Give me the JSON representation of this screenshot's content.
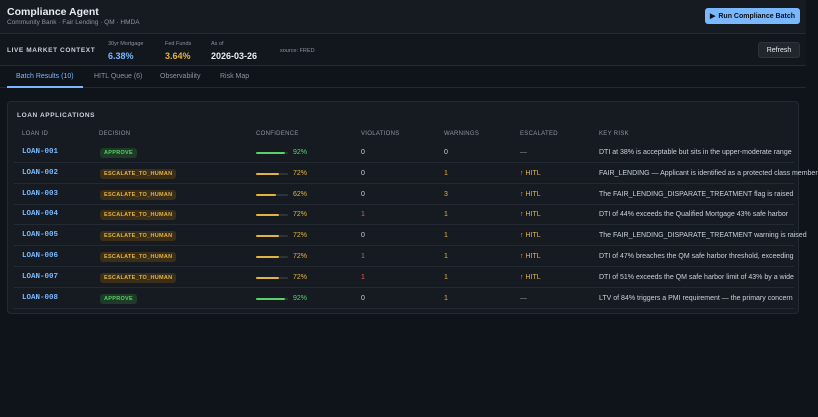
{
  "header": {
    "title": "Compliance Agent",
    "subtitle": "Community Bank · Fair Lending · QM · HMDA",
    "run_button": {
      "icon": "play-icon",
      "glyph": "▶",
      "label": "Run Compliance Batch"
    }
  },
  "market": {
    "label": "LIVE MARKET CONTEXT",
    "items": [
      {
        "caption": "30yr Mortgage",
        "value": "6.38%",
        "color": "#79b8ff"
      },
      {
        "caption": "Fed Funds",
        "value": "3.64%",
        "color": "#e3b341"
      },
      {
        "caption": "As of",
        "value": "2026-03-26",
        "color": "#e6edf3"
      }
    ],
    "source": "source: FRED",
    "refresh_label": "Refresh"
  },
  "tabs": [
    {
      "label": "Batch Results (10)",
      "active": true
    },
    {
      "label": "HITL Queue (6)",
      "active": false
    },
    {
      "label": "Observability",
      "active": false
    },
    {
      "label": "Risk Map",
      "active": false
    }
  ],
  "panel": {
    "title": "LOAN APPLICATIONS",
    "columns": [
      "LOAN ID",
      "DECISION",
      "CONFIDENCE",
      "VIOLATIONS",
      "WARNINGS",
      "ESCALATED",
      "KEY RISK"
    ]
  },
  "colors": {
    "green": "#56d364",
    "amber": "#e3b341",
    "red": "#f85149",
    "neutral": "#c9d1d9"
  },
  "rows": [
    {
      "id": "LOAN-001",
      "decision": "APPROVE",
      "confidence": "92%",
      "confidence_value": 0.92,
      "violations": "0",
      "warnings": "0",
      "escalated": "—",
      "escalated_icon": "",
      "risk": "DTI at 38% is acceptable but sits in the upper-moderate range"
    },
    {
      "id": "LOAN-002",
      "decision": "ESCALATE_TO_HUMAN",
      "confidence": "72%",
      "confidence_value": 0.72,
      "violations": "0",
      "warnings": "1",
      "escalated": "HITL",
      "escalated_icon": "↑",
      "risk": "FAIR_LENDING — Applicant is identified as a protected class member"
    },
    {
      "id": "LOAN-003",
      "decision": "ESCALATE_TO_HUMAN",
      "confidence": "62%",
      "confidence_value": 0.62,
      "violations": "0",
      "warnings": "3",
      "escalated": "HITL",
      "escalated_icon": "↑",
      "risk": "The FAIR_LENDING_DISPARATE_TREATMENT flag is raised"
    },
    {
      "id": "LOAN-004",
      "decision": "ESCALATE_TO_HUMAN",
      "confidence": "72%",
      "confidence_value": 0.72,
      "violations": "1",
      "warnings": "1",
      "escalated": "HITL",
      "escalated_icon": "↑",
      "risk": "DTI of 44% exceeds the Qualified Mortgage 43% safe harbor"
    },
    {
      "id": "LOAN-005",
      "decision": "ESCALATE_TO_HUMAN",
      "confidence": "72%",
      "confidence_value": 0.72,
      "violations": "0",
      "warnings": "1",
      "escalated": "HITL",
      "escalated_icon": "↑",
      "risk": "The FAIR_LENDING_DISPARATE_TREATMENT warning is raised"
    },
    {
      "id": "LOAN-006",
      "decision": "ESCALATE_TO_HUMAN",
      "confidence": "72%",
      "confidence_value": 0.72,
      "violations": "1",
      "warnings": "1",
      "escalated": "HITL",
      "escalated_icon": "↑",
      "risk": "DTI of 47% breaches the QM safe harbor threshold, exceeding"
    },
    {
      "id": "LOAN-007",
      "decision": "ESCALATE_TO_HUMAN",
      "confidence": "72%",
      "confidence_value": 0.72,
      "violations": "1",
      "warnings": "1",
      "escalated": "HITL",
      "escalated_icon": "↑",
      "risk": "DTI of 51% exceeds the QM safe harbor limit of 43% by a wide"
    },
    {
      "id": "LOAN-008",
      "decision": "APPROVE",
      "confidence": "92%",
      "confidence_value": 0.92,
      "violations": "0",
      "warnings": "1",
      "escalated": "—",
      "escalated_icon": "",
      "risk": "LTV of 84% triggers a PMI requirement — the primary concern"
    }
  ]
}
